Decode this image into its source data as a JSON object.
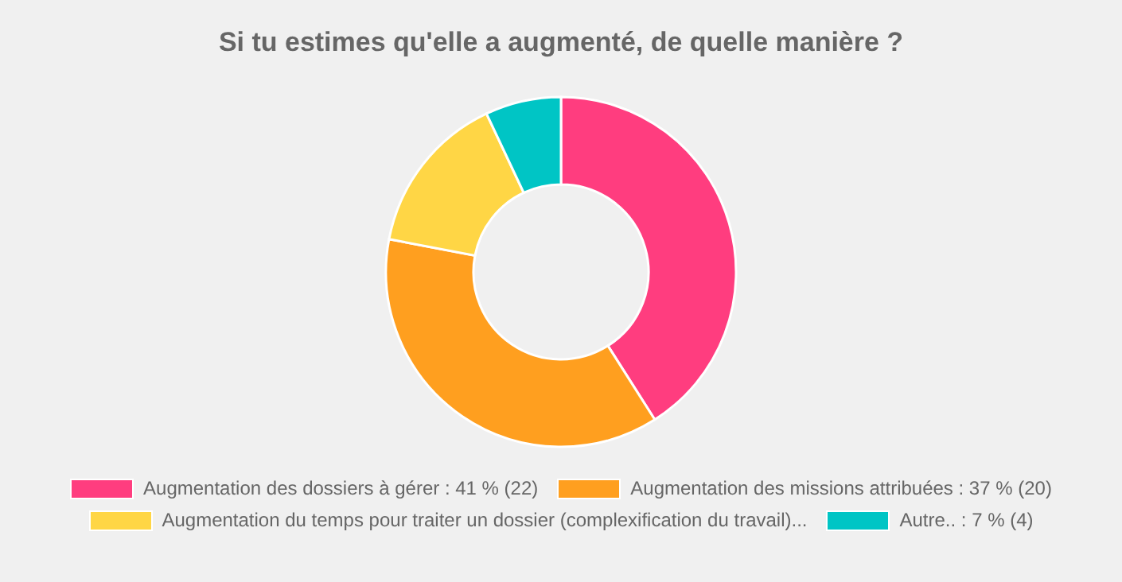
{
  "chart_data": {
    "type": "donut",
    "title": "Si tu estimes qu'elle a augmenté, de quelle manière ?",
    "categories": [
      "Augmentation des dossiers à gérer : 41 % (22)",
      "Augmentation des missions attribuées : 37 % (20)",
      "Augmentation du temps pour traiter un dossier (complexification du travail)...",
      "Autre.. : 7 % (4)"
    ],
    "values": [
      41,
      37,
      15,
      7
    ],
    "colors": [
      "#ff3d7f",
      "#ff9f1f",
      "#ffd645",
      "#00c5c5"
    ],
    "legend": "bottom"
  }
}
